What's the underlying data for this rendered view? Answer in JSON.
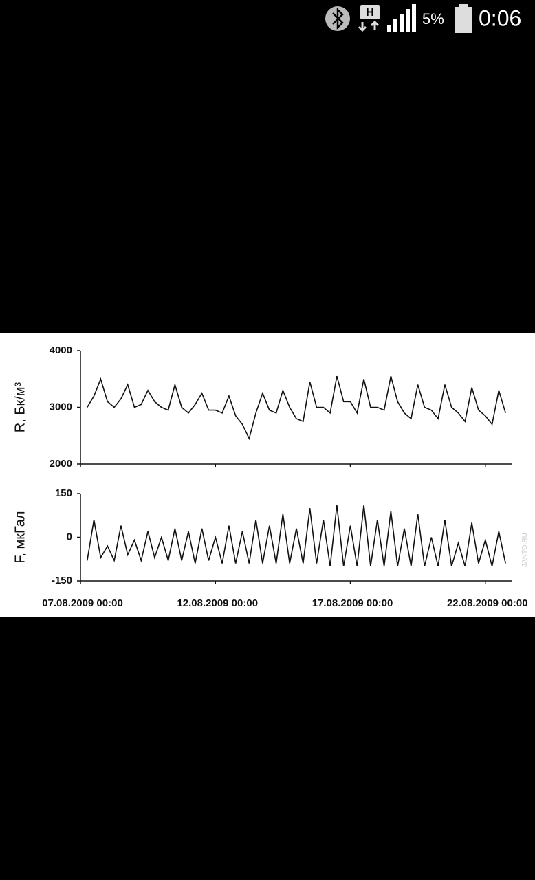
{
  "status_bar": {
    "network": "H",
    "battery": "5%",
    "time": "0:06"
  },
  "watermark": "JANTO.RU",
  "chart_data": [
    {
      "type": "line",
      "y_label": "R, Бк/м³",
      "x": [
        "07.08.2009 06:00",
        "07.08.2009 12:00",
        "07.08.2009 18:00",
        "08.08.2009 00:00",
        "08.08.2009 06:00",
        "08.08.2009 12:00",
        "08.08.2009 18:00",
        "09.08.2009 00:00",
        "09.08.2009 06:00",
        "09.08.2009 12:00",
        "09.08.2009 18:00",
        "10.08.2009 00:00",
        "10.08.2009 06:00",
        "10.08.2009 12:00",
        "10.08.2009 18:00",
        "11.08.2009 00:00",
        "11.08.2009 06:00",
        "11.08.2009 12:00",
        "11.08.2009 18:00",
        "12.08.2009 00:00",
        "12.08.2009 06:00",
        "12.08.2009 12:00",
        "12.08.2009 18:00",
        "13.08.2009 00:00",
        "13.08.2009 06:00",
        "13.08.2009 12:00",
        "13.08.2009 18:00",
        "14.08.2009 00:00",
        "14.08.2009 06:00",
        "14.08.2009 12:00",
        "14.08.2009 18:00",
        "15.08.2009 00:00",
        "15.08.2009 06:00",
        "15.08.2009 12:00",
        "15.08.2009 18:00",
        "16.08.2009 00:00",
        "16.08.2009 06:00",
        "16.08.2009 12:00",
        "16.08.2009 18:00",
        "17.08.2009 00:00",
        "17.08.2009 06:00",
        "17.08.2009 12:00",
        "17.08.2009 18:00",
        "18.08.2009 00:00",
        "18.08.2009 06:00",
        "18.08.2009 12:00",
        "18.08.2009 18:00",
        "19.08.2009 00:00",
        "19.08.2009 06:00",
        "19.08.2009 12:00",
        "19.08.2009 18:00",
        "20.08.2009 00:00",
        "20.08.2009 06:00",
        "20.08.2009 12:00",
        "20.08.2009 18:00",
        "21.08.2009 00:00",
        "21.08.2009 06:00",
        "21.08.2009 12:00",
        "21.08.2009 18:00",
        "22.08.2009 00:00",
        "22.08.2009 06:00",
        "22.08.2009 12:00",
        "22.08.2009 18:00"
      ],
      "values": [
        3000,
        3200,
        3500,
        3100,
        3000,
        3150,
        3400,
        3000,
        3050,
        3300,
        3100,
        3000,
        2950,
        3400,
        3000,
        2900,
        3050,
        3250,
        2950,
        2950,
        2900,
        3200,
        2850,
        2700,
        2450,
        2900,
        3250,
        2950,
        2900,
        3300,
        3000,
        2800,
        2750,
        3450,
        3000,
        3000,
        2900,
        3550,
        3100,
        3100,
        2900,
        3500,
        3000,
        3000,
        2950,
        3550,
        3100,
        2900,
        2800,
        3400,
        3000,
        2950,
        2800,
        3400,
        3000,
        2900,
        2750,
        3350,
        2950,
        2850,
        2700,
        3300,
        2900
      ],
      "color": "#111111",
      "xlim": [
        "07.08.2009 00:00",
        "23.08.2009 00:00"
      ],
      "xticks": [
        "07.08.2009 00:00",
        "12.08.2009 00:00",
        "17.08.2009 00:00",
        "22.08.2009 00:00"
      ],
      "ylim": [
        2000,
        4000
      ],
      "yticks": [
        2000,
        3000,
        4000
      ]
    },
    {
      "type": "line",
      "y_label": "F, мкГал",
      "x": [
        "07.08.2009 06:00",
        "07.08.2009 12:00",
        "07.08.2009 18:00",
        "08.08.2009 00:00",
        "08.08.2009 06:00",
        "08.08.2009 12:00",
        "08.08.2009 18:00",
        "09.08.2009 00:00",
        "09.08.2009 06:00",
        "09.08.2009 12:00",
        "09.08.2009 18:00",
        "10.08.2009 00:00",
        "10.08.2009 06:00",
        "10.08.2009 12:00",
        "10.08.2009 18:00",
        "11.08.2009 00:00",
        "11.08.2009 06:00",
        "11.08.2009 12:00",
        "11.08.2009 18:00",
        "12.08.2009 00:00",
        "12.08.2009 06:00",
        "12.08.2009 12:00",
        "12.08.2009 18:00",
        "13.08.2009 00:00",
        "13.08.2009 06:00",
        "13.08.2009 12:00",
        "13.08.2009 18:00",
        "14.08.2009 00:00",
        "14.08.2009 06:00",
        "14.08.2009 12:00",
        "14.08.2009 18:00",
        "15.08.2009 00:00",
        "15.08.2009 06:00",
        "15.08.2009 12:00",
        "15.08.2009 18:00",
        "16.08.2009 00:00",
        "16.08.2009 06:00",
        "16.08.2009 12:00",
        "16.08.2009 18:00",
        "17.08.2009 00:00",
        "17.08.2009 06:00",
        "17.08.2009 12:00",
        "17.08.2009 18:00",
        "18.08.2009 00:00",
        "18.08.2009 06:00",
        "18.08.2009 12:00",
        "18.08.2009 18:00",
        "19.08.2009 00:00",
        "19.08.2009 06:00",
        "19.08.2009 12:00",
        "19.08.2009 18:00",
        "20.08.2009 00:00",
        "20.08.2009 06:00",
        "20.08.2009 12:00",
        "20.08.2009 18:00",
        "21.08.2009 00:00",
        "21.08.2009 06:00",
        "21.08.2009 12:00",
        "21.08.2009 18:00",
        "22.08.2009 00:00",
        "22.08.2009 06:00",
        "22.08.2009 12:00",
        "22.08.2009 18:00"
      ],
      "values": [
        -80,
        60,
        -70,
        -30,
        -80,
        40,
        -60,
        -10,
        -80,
        20,
        -70,
        0,
        -80,
        30,
        -80,
        20,
        -90,
        30,
        -80,
        0,
        -90,
        40,
        -90,
        20,
        -90,
        60,
        -90,
        40,
        -90,
        80,
        -90,
        30,
        -90,
        100,
        -90,
        60,
        -100,
        110,
        -100,
        40,
        -100,
        110,
        -100,
        60,
        -100,
        90,
        -100,
        30,
        -100,
        80,
        -100,
        0,
        -100,
        60,
        -100,
        -20,
        -100,
        50,
        -90,
        -10,
        -100,
        20,
        -90
      ],
      "color": "#111111",
      "xlim": [
        "07.08.2009 00:00",
        "23.08.2009 00:00"
      ],
      "xticks": [
        "07.08.2009 00:00",
        "12.08.2009 00:00",
        "17.08.2009 00:00",
        "22.08.2009 00:00"
      ],
      "ylim": [
        -150,
        150
      ],
      "yticks": [
        -150,
        0,
        150
      ]
    }
  ]
}
